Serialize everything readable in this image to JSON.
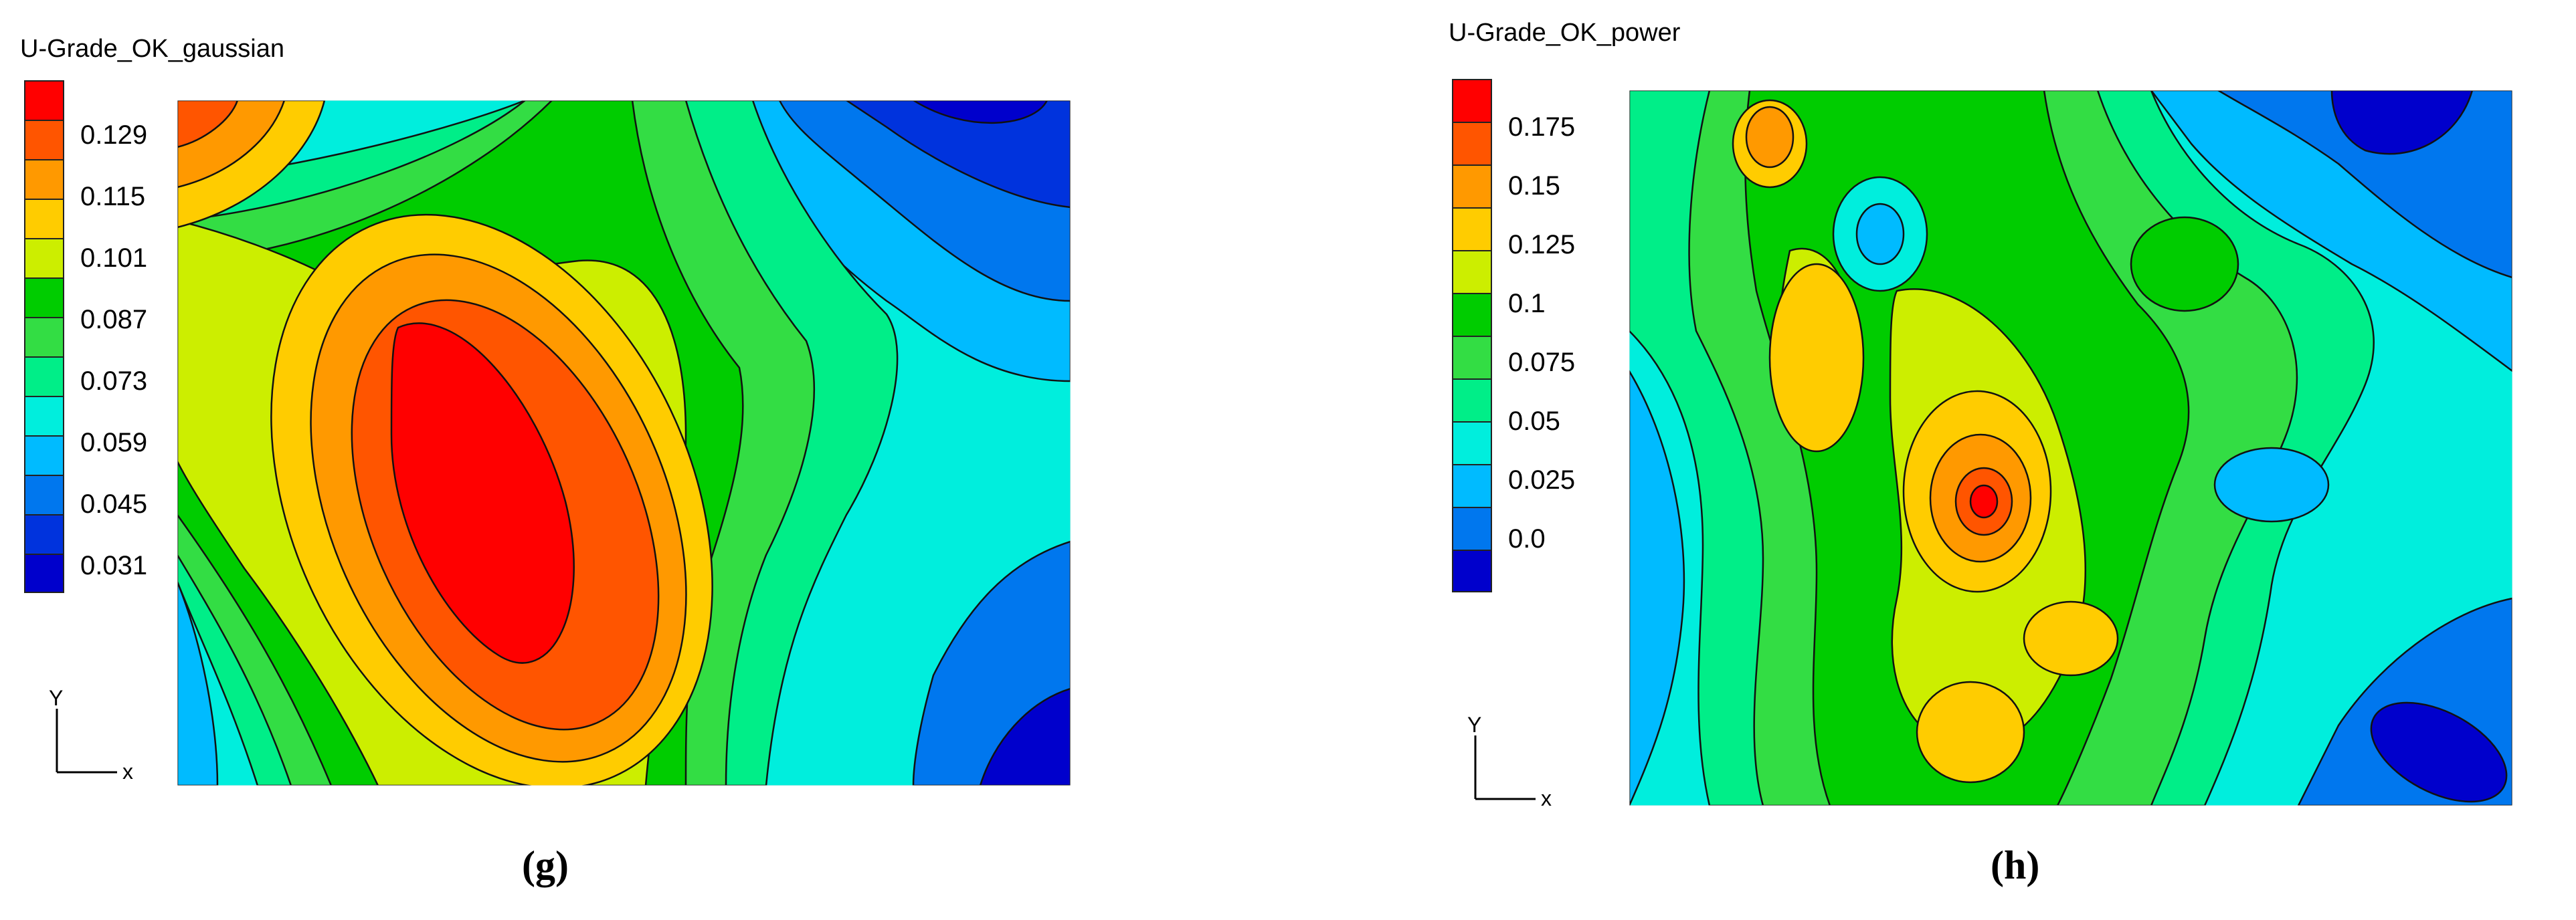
{
  "chart_data": [
    {
      "type": "heatmap",
      "subtype": "filled-contour-map",
      "title": "U-Grade_OK_gaussian",
      "panel_label": "(g)",
      "legend": {
        "ticks": [
          "0.129",
          "0.115",
          "0.101",
          "0.087",
          "0.073",
          "0.059",
          "0.045",
          "0.031"
        ],
        "colors": [
          "#ff0000",
          "#ff5500",
          "#ff9900",
          "#ffcc00",
          "#ccee00",
          "#00cc00",
          "#33dd44",
          "#00ee88",
          "#00eedd",
          "#00bbff",
          "#0077ee",
          "#0033dd",
          "#0000cc"
        ]
      },
      "axis_glyphs": {
        "x": "x",
        "y": "Y"
      },
      "value_range": [
        0.031,
        0.129
      ],
      "high_zone": "centre-left (elongated NW–SE)",
      "low_zone": "top-right and bottom-right"
    },
    {
      "type": "heatmap",
      "subtype": "filled-contour-map",
      "title": "U-Grade_OK_power",
      "panel_label": "(h)",
      "legend": {
        "ticks": [
          "0.175",
          "0.15",
          "0.125",
          "0.1",
          "0.075",
          "0.05",
          "0.025",
          "0.0"
        ],
        "colors": [
          "#ff0000",
          "#ff5500",
          "#ff9900",
          "#ffcc00",
          "#ccee00",
          "#00cc00",
          "#33dd44",
          "#00ee88",
          "#00eedd",
          "#00bbff",
          "#0077ee",
          "#0000cc"
        ]
      },
      "axis_glyphs": {
        "x": "x",
        "y": "Y"
      },
      "value_range": [
        0.0,
        0.175
      ],
      "high_zone": "centre (local maxima scattered)",
      "low_zone": "top-right and bottom-right"
    }
  ]
}
